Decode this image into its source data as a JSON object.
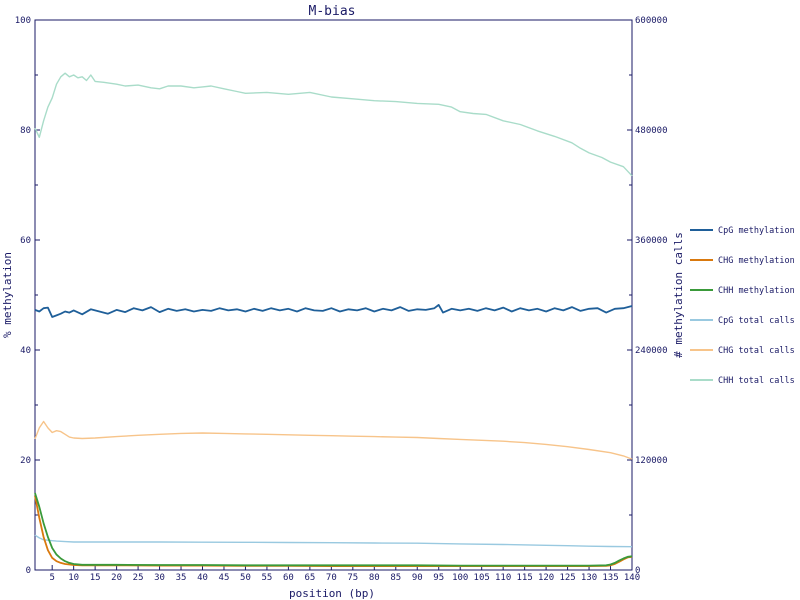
{
  "chart_data": {
    "type": "line",
    "title": "M-bias",
    "xlabel": "position (bp)",
    "ylabel_left": "% methylation",
    "ylabel_right": "# methylation calls",
    "xlim": [
      1,
      140
    ],
    "ylim_left": [
      0,
      100
    ],
    "ylim_right": [
      0,
      600000
    ],
    "x_ticks": [
      5,
      10,
      15,
      20,
      25,
      30,
      35,
      40,
      45,
      50,
      55,
      60,
      65,
      70,
      75,
      80,
      85,
      90,
      95,
      100,
      105,
      110,
      115,
      120,
      125,
      130,
      135,
      140
    ],
    "y_ticks_left": [
      0,
      20,
      40,
      60,
      80,
      100
    ],
    "y_ticks_right": [
      0,
      120000,
      240000,
      360000,
      480000,
      600000
    ],
    "legend_position": "right",
    "series": [
      {
        "name": "CpG methylation",
        "axis": "left",
        "color": "#1f5f99",
        "points": [
          [
            1,
            47.3
          ],
          [
            2,
            47.0
          ],
          [
            3,
            47.6
          ],
          [
            4,
            47.7
          ],
          [
            5,
            46.0
          ],
          [
            6,
            46.3
          ],
          [
            7,
            46.6
          ],
          [
            8,
            47.0
          ],
          [
            9,
            46.8
          ],
          [
            10,
            47.2
          ],
          [
            12,
            46.5
          ],
          [
            14,
            47.4
          ],
          [
            16,
            47.0
          ],
          [
            18,
            46.6
          ],
          [
            20,
            47.3
          ],
          [
            22,
            46.9
          ],
          [
            24,
            47.6
          ],
          [
            26,
            47.2
          ],
          [
            28,
            47.8
          ],
          [
            30,
            46.9
          ],
          [
            32,
            47.5
          ],
          [
            34,
            47.1
          ],
          [
            36,
            47.4
          ],
          [
            38,
            47.0
          ],
          [
            40,
            47.3
          ],
          [
            42,
            47.1
          ],
          [
            44,
            47.6
          ],
          [
            46,
            47.2
          ],
          [
            48,
            47.4
          ],
          [
            50,
            47.0
          ],
          [
            52,
            47.5
          ],
          [
            54,
            47.1
          ],
          [
            56,
            47.6
          ],
          [
            58,
            47.2
          ],
          [
            60,
            47.5
          ],
          [
            62,
            47.0
          ],
          [
            64,
            47.6
          ],
          [
            66,
            47.2
          ],
          [
            68,
            47.1
          ],
          [
            70,
            47.6
          ],
          [
            72,
            47.0
          ],
          [
            74,
            47.4
          ],
          [
            76,
            47.2
          ],
          [
            78,
            47.6
          ],
          [
            80,
            47.0
          ],
          [
            82,
            47.5
          ],
          [
            84,
            47.2
          ],
          [
            86,
            47.8
          ],
          [
            88,
            47.1
          ],
          [
            90,
            47.4
          ],
          [
            92,
            47.3
          ],
          [
            94,
            47.6
          ],
          [
            95,
            48.2
          ],
          [
            96,
            46.8
          ],
          [
            98,
            47.5
          ],
          [
            100,
            47.2
          ],
          [
            102,
            47.5
          ],
          [
            104,
            47.1
          ],
          [
            106,
            47.6
          ],
          [
            108,
            47.2
          ],
          [
            110,
            47.7
          ],
          [
            112,
            47.0
          ],
          [
            114,
            47.6
          ],
          [
            116,
            47.2
          ],
          [
            118,
            47.5
          ],
          [
            120,
            47.0
          ],
          [
            122,
            47.6
          ],
          [
            124,
            47.2
          ],
          [
            126,
            47.8
          ],
          [
            128,
            47.1
          ],
          [
            130,
            47.5
          ],
          [
            132,
            47.6
          ],
          [
            134,
            46.8
          ],
          [
            136,
            47.5
          ],
          [
            138,
            47.6
          ],
          [
            140,
            48.0
          ]
        ]
      },
      {
        "name": "CHG methylation",
        "axis": "left",
        "color": "#d9790e",
        "points": [
          [
            1,
            13.5
          ],
          [
            2,
            9.5
          ],
          [
            3,
            6.0
          ],
          [
            4,
            3.6
          ],
          [
            5,
            2.2
          ],
          [
            6,
            1.6
          ],
          [
            7,
            1.3
          ],
          [
            8,
            1.1
          ],
          [
            9,
            1.0
          ],
          [
            10,
            0.9
          ],
          [
            12,
            0.85
          ],
          [
            20,
            0.85
          ],
          [
            30,
            0.8
          ],
          [
            40,
            0.8
          ],
          [
            50,
            0.75
          ],
          [
            60,
            0.75
          ],
          [
            70,
            0.7
          ],
          [
            80,
            0.7
          ],
          [
            90,
            0.7
          ],
          [
            100,
            0.7
          ],
          [
            110,
            0.7
          ],
          [
            120,
            0.7
          ],
          [
            130,
            0.7
          ],
          [
            134,
            0.75
          ],
          [
            135,
            0.85
          ],
          [
            136,
            1.1
          ],
          [
            137,
            1.5
          ],
          [
            138,
            1.9
          ],
          [
            139,
            2.3
          ],
          [
            140,
            2.4
          ]
        ]
      },
      {
        "name": "CHH methylation",
        "axis": "left",
        "color": "#3a9a3a",
        "points": [
          [
            1,
            14.0
          ],
          [
            2,
            11.5
          ],
          [
            3,
            8.5
          ],
          [
            4,
            6.0
          ],
          [
            5,
            4.0
          ],
          [
            6,
            2.8
          ],
          [
            7,
            2.1
          ],
          [
            8,
            1.6
          ],
          [
            9,
            1.3
          ],
          [
            10,
            1.1
          ],
          [
            12,
            0.95
          ],
          [
            20,
            0.95
          ],
          [
            30,
            0.9
          ],
          [
            40,
            0.9
          ],
          [
            50,
            0.85
          ],
          [
            60,
            0.85
          ],
          [
            70,
            0.85
          ],
          [
            80,
            0.85
          ],
          [
            90,
            0.85
          ],
          [
            100,
            0.8
          ],
          [
            110,
            0.8
          ],
          [
            120,
            0.8
          ],
          [
            130,
            0.8
          ],
          [
            134,
            0.85
          ],
          [
            135,
            1.0
          ],
          [
            136,
            1.3
          ],
          [
            137,
            1.7
          ],
          [
            138,
            2.1
          ],
          [
            139,
            2.4
          ],
          [
            140,
            2.5
          ]
        ]
      },
      {
        "name": "CpG total calls",
        "axis": "right",
        "color": "#99c9e0",
        "points": [
          [
            1,
            38000
          ],
          [
            2,
            35000
          ],
          [
            3,
            33000
          ],
          [
            4,
            32500
          ],
          [
            5,
            32000
          ],
          [
            6,
            31500
          ],
          [
            8,
            31000
          ],
          [
            10,
            30500
          ],
          [
            20,
            30500
          ],
          [
            30,
            30500
          ],
          [
            40,
            30300
          ],
          [
            50,
            30200
          ],
          [
            60,
            30000
          ],
          [
            70,
            29800
          ],
          [
            80,
            29500
          ],
          [
            90,
            29200
          ],
          [
            100,
            28500
          ],
          [
            110,
            27800
          ],
          [
            120,
            27000
          ],
          [
            125,
            26500
          ],
          [
            130,
            26000
          ],
          [
            135,
            25600
          ],
          [
            140,
            25400
          ]
        ]
      },
      {
        "name": "CHG total calls",
        "axis": "right",
        "color": "#f7c48a",
        "points": [
          [
            1,
            143000
          ],
          [
            2,
            155000
          ],
          [
            3,
            162000
          ],
          [
            4,
            155000
          ],
          [
            5,
            150000
          ],
          [
            6,
            152000
          ],
          [
            7,
            151000
          ],
          [
            8,
            148000
          ],
          [
            9,
            145000
          ],
          [
            10,
            144000
          ],
          [
            12,
            143500
          ],
          [
            15,
            144000
          ],
          [
            20,
            145500
          ],
          [
            25,
            147000
          ],
          [
            30,
            148000
          ],
          [
            35,
            149000
          ],
          [
            40,
            149500
          ],
          [
            45,
            149000
          ],
          [
            50,
            148500
          ],
          [
            55,
            148000
          ],
          [
            60,
            147500
          ],
          [
            65,
            147000
          ],
          [
            70,
            146500
          ],
          [
            75,
            146000
          ],
          [
            80,
            145500
          ],
          [
            85,
            145000
          ],
          [
            90,
            144500
          ],
          [
            95,
            143500
          ],
          [
            100,
            142500
          ],
          [
            105,
            141500
          ],
          [
            110,
            140500
          ],
          [
            115,
            139000
          ],
          [
            120,
            137000
          ],
          [
            125,
            134500
          ],
          [
            130,
            131500
          ],
          [
            135,
            128000
          ],
          [
            138,
            124500
          ],
          [
            140,
            121000
          ]
        ]
      },
      {
        "name": "CHH total calls",
        "axis": "right",
        "color": "#a9dcc9",
        "points": [
          [
            1,
            482000
          ],
          [
            2,
            472000
          ],
          [
            3,
            490000
          ],
          [
            4,
            505000
          ],
          [
            5,
            515000
          ],
          [
            6,
            530000
          ],
          [
            7,
            538000
          ],
          [
            8,
            542000
          ],
          [
            9,
            538000
          ],
          [
            10,
            540000
          ],
          [
            11,
            537000
          ],
          [
            12,
            538000
          ],
          [
            13,
            534000
          ],
          [
            14,
            540000
          ],
          [
            15,
            533000
          ],
          [
            17,
            532000
          ],
          [
            20,
            530000
          ],
          [
            22,
            528000
          ],
          [
            25,
            529000
          ],
          [
            28,
            526000
          ],
          [
            30,
            525000
          ],
          [
            32,
            528000
          ],
          [
            35,
            528000
          ],
          [
            38,
            526000
          ],
          [
            40,
            527000
          ],
          [
            42,
            528000
          ],
          [
            45,
            525000
          ],
          [
            48,
            522000
          ],
          [
            50,
            520000
          ],
          [
            55,
            521000
          ],
          [
            60,
            519000
          ],
          [
            65,
            521000
          ],
          [
            70,
            516000
          ],
          [
            75,
            514000
          ],
          [
            80,
            512000
          ],
          [
            85,
            511000
          ],
          [
            90,
            509000
          ],
          [
            95,
            508000
          ],
          [
            98,
            505000
          ],
          [
            100,
            500000
          ],
          [
            103,
            498000
          ],
          [
            106,
            497000
          ],
          [
            110,
            490000
          ],
          [
            114,
            486000
          ],
          [
            118,
            479000
          ],
          [
            122,
            473000
          ],
          [
            126,
            466000
          ],
          [
            128,
            460000
          ],
          [
            130,
            455000
          ],
          [
            133,
            450000
          ],
          [
            135,
            445000
          ],
          [
            138,
            440000
          ],
          [
            140,
            430000
          ]
        ]
      }
    ]
  }
}
